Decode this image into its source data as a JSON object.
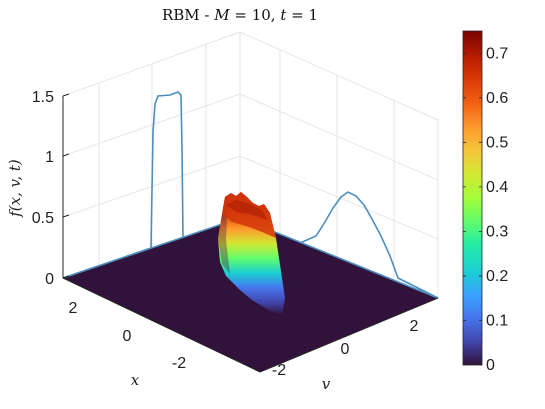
{
  "chart_data": {
    "type": "surface",
    "title": {
      "prefix": "RBM - ",
      "M_symbol": "M",
      "M_value": " = 10, ",
      "t_symbol": "t",
      "t_value": " = 1"
    },
    "zlabel": "f(x, v, t)",
    "xlabel": "x",
    "ylabel": "v",
    "xlim": [
      -3,
      3
    ],
    "ylim": [
      -3,
      3
    ],
    "zlim": [
      0,
      1.5
    ],
    "x_ticks": [
      "2",
      "0",
      "-2"
    ],
    "y_ticks": [
      "-2",
      "0",
      "2"
    ],
    "z_ticks": [
      "0",
      "0.5",
      "1",
      "1.5"
    ],
    "grid": true,
    "colormap": "turbo",
    "colorbar": {
      "range": [
        0,
        0.75
      ],
      "ticks": [
        "0",
        "0.1",
        "0.2",
        "0.3",
        "0.4",
        "0.5",
        "0.6",
        "0.7"
      ]
    },
    "surface_bump": {
      "x_range": [
        -0.2,
        0.6
      ],
      "v_range": [
        -3,
        0
      ],
      "peak": 0.72
    },
    "projection_x": {
      "description_x_values": [
        -3,
        -0.4,
        -0.3,
        0.3,
        0.4,
        3
      ],
      "values": [
        0,
        0,
        1.45,
        1.47,
        0,
        0
      ]
    },
    "projection_v": {
      "v_values": [
        -3,
        -0.5,
        0,
        0.5,
        1,
        1.5,
        3
      ],
      "values": [
        0,
        0,
        0.35,
        0.62,
        0.67,
        0.4,
        0
      ]
    },
    "colors": {
      "floor": "#30123b",
      "projection_line": "#4d8ebf",
      "grid": "#e6e6e6"
    }
  }
}
